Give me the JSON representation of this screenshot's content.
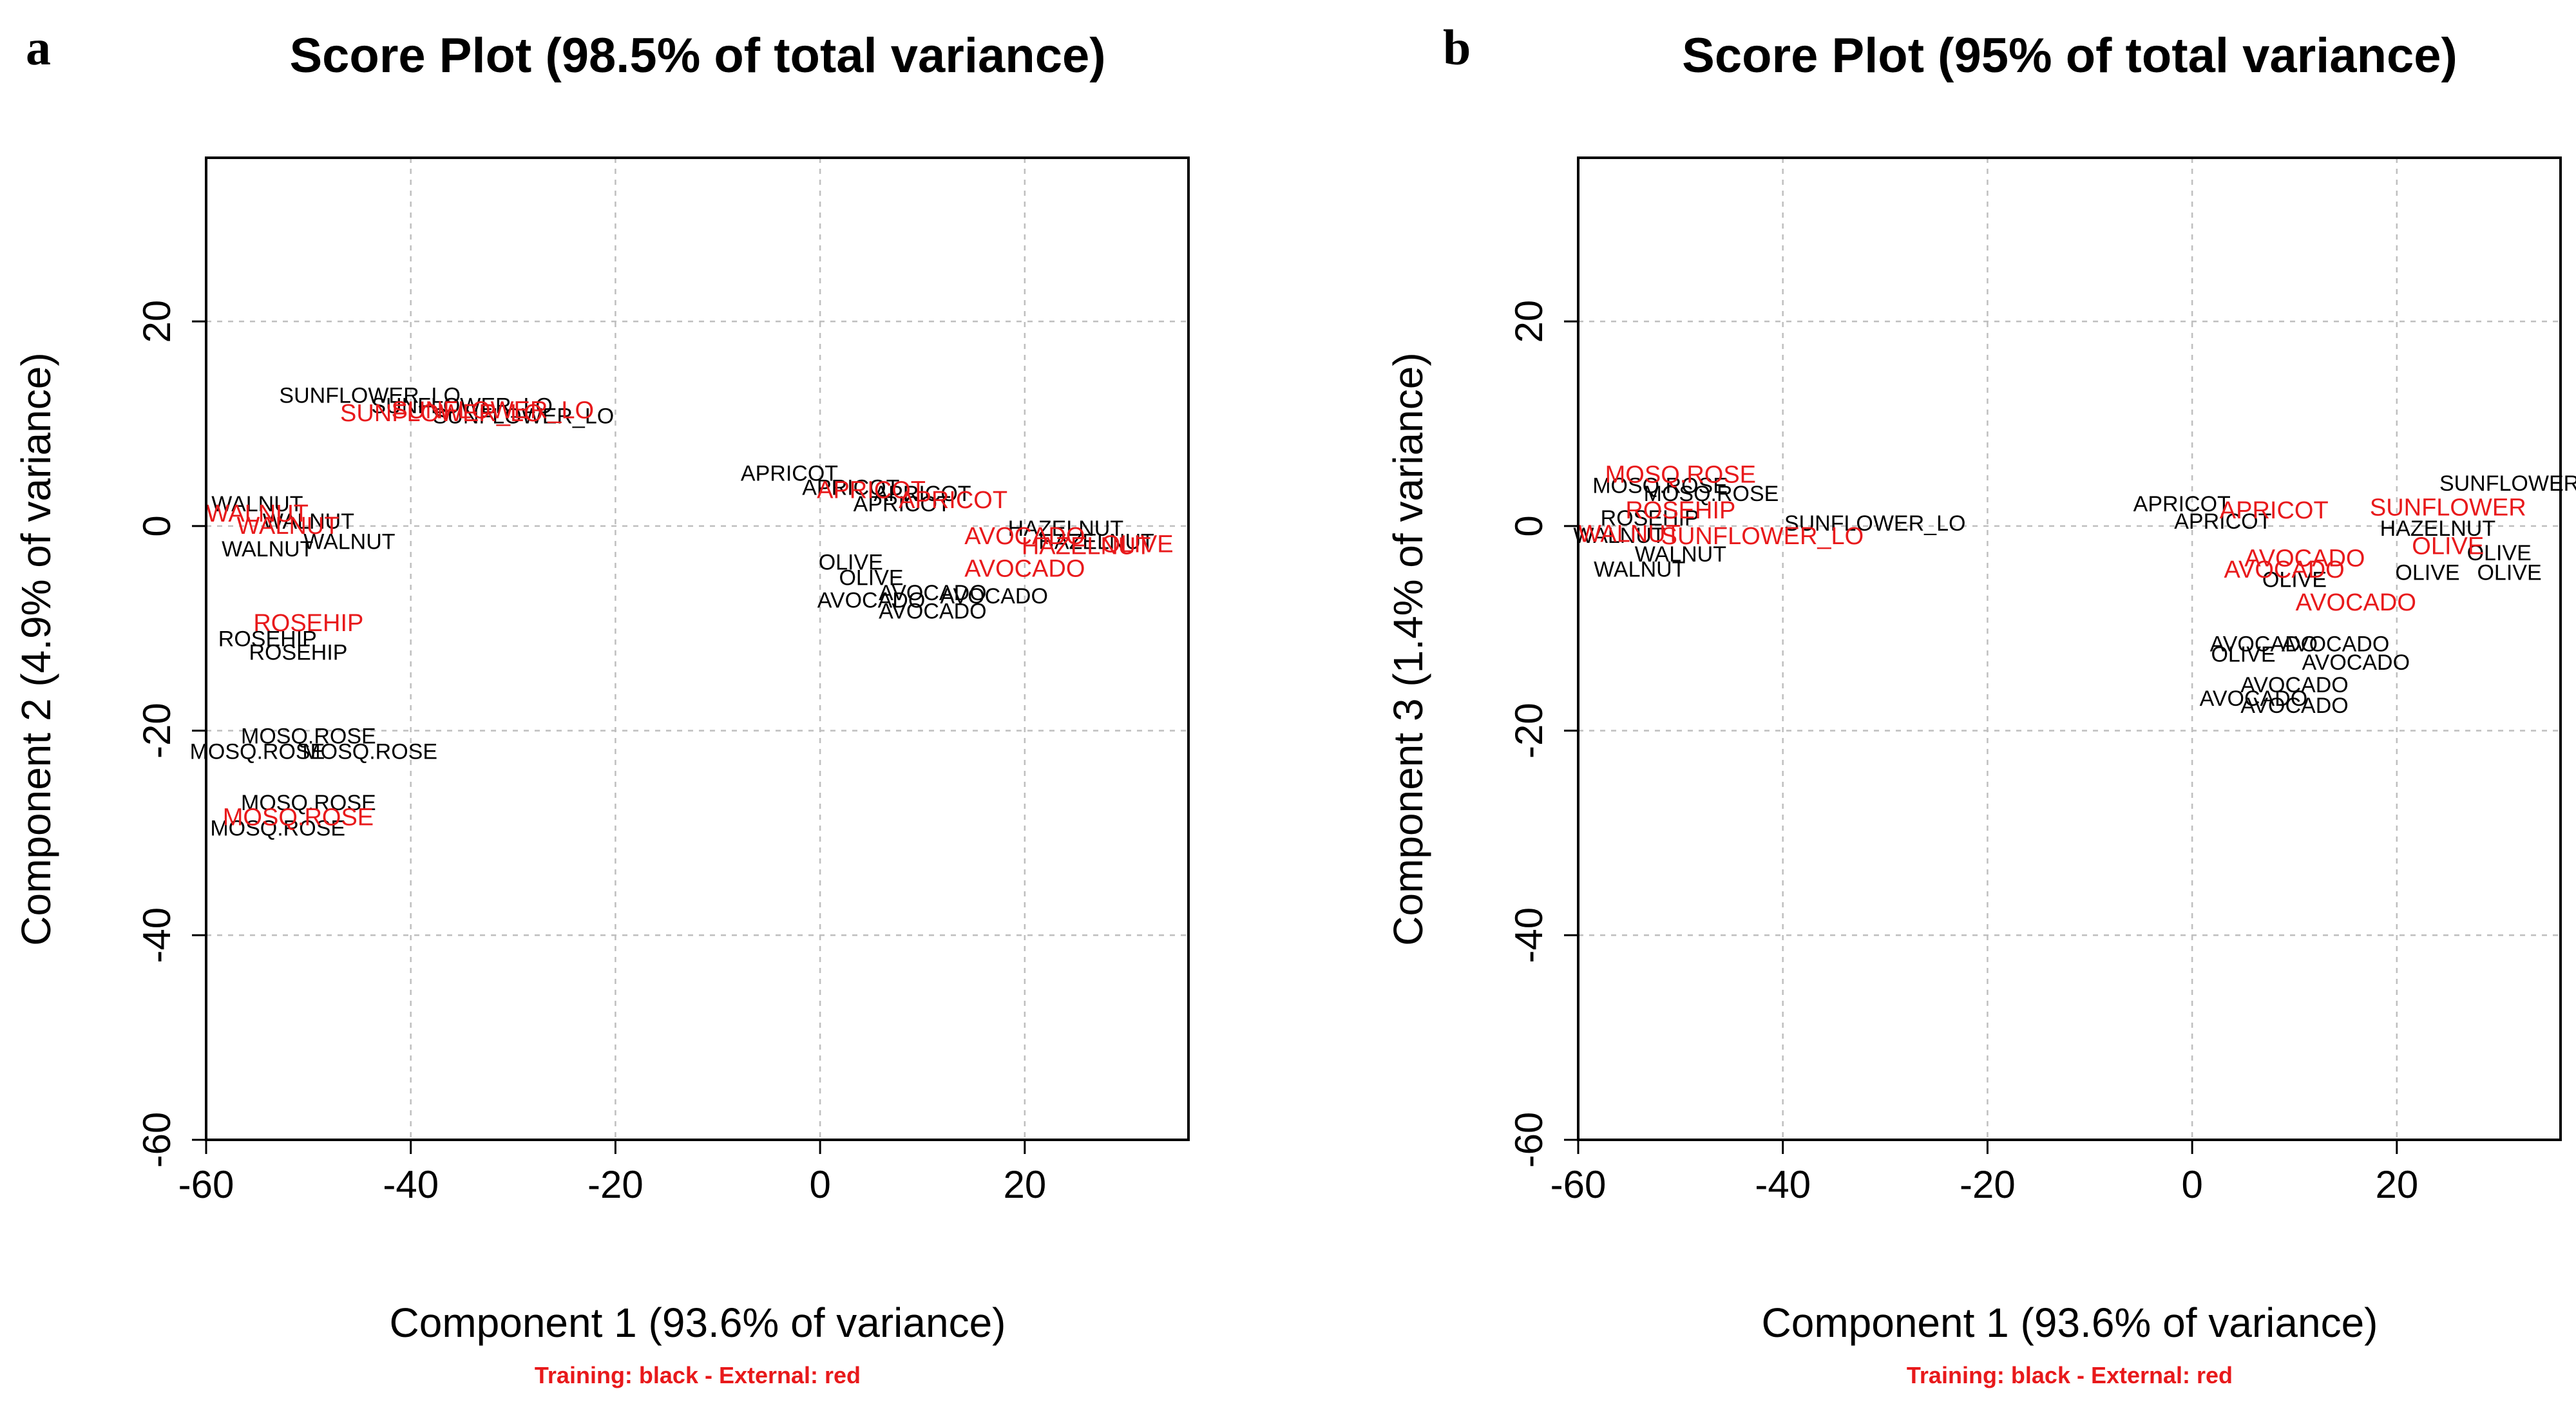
{
  "colors": {
    "training": "#000000",
    "external": "#e8191b",
    "grid": "#bfbfbf",
    "axis": "#000000"
  },
  "chart_data": [
    {
      "panel_label": "a",
      "type": "scatter",
      "title": "Score Plot (98.5% of total variance)",
      "xlabel": "Component 1 (93.6% of variance)",
      "ylabel": "Component 2 (4.9% of variance)",
      "note": "Training: black - External: red",
      "xlim": [
        -60,
        36
      ],
      "ylim": [
        -60,
        36
      ],
      "xticks": [
        -60,
        -40,
        -20,
        0,
        20
      ],
      "yticks": [
        -60,
        -40,
        -20,
        0,
        20
      ],
      "series": [
        {
          "name": "Training",
          "color": "black",
          "points": [
            {
              "x": -44,
              "y": 12.8,
              "label": "SUNFLOWER_LO"
            },
            {
              "x": -35,
              "y": 11.8,
              "label": "SUNFLOWER_LO"
            },
            {
              "x": -29,
              "y": 10.8,
              "label": "SUNFLOWER_LO"
            },
            {
              "x": -3,
              "y": 5.2,
              "label": "APRICOT"
            },
            {
              "x": 3,
              "y": 3.8,
              "label": "APRICOT"
            },
            {
              "x": 10,
              "y": 3.2,
              "label": "APRICOT"
            },
            {
              "x": 8,
              "y": 2.2,
              "label": "APRICOT"
            },
            {
              "x": 24,
              "y": -0.2,
              "label": "HAZELNUT"
            },
            {
              "x": 27,
              "y": -1.5,
              "label": "HAZELNUT"
            },
            {
              "x": 3,
              "y": -3.5,
              "label": "OLIVE"
            },
            {
              "x": 5,
              "y": -5,
              "label": "OLIVE"
            },
            {
              "x": 11,
              "y": -6.5,
              "label": "AVOCADO"
            },
            {
              "x": 17,
              "y": -6.8,
              "label": "AVOCADO"
            },
            {
              "x": 5,
              "y": -7.2,
              "label": "AVOCADO"
            },
            {
              "x": 11,
              "y": -8.3,
              "label": "AVOCADO"
            },
            {
              "x": -55,
              "y": 2.2,
              "label": "WALNUT"
            },
            {
              "x": -50,
              "y": 0.5,
              "label": "WALNUT"
            },
            {
              "x": -46,
              "y": -1.5,
              "label": "WALNUT"
            },
            {
              "x": -54,
              "y": -2.2,
              "label": "WALNUT"
            },
            {
              "x": -54,
              "y": -11,
              "label": "ROSEHIP"
            },
            {
              "x": -51,
              "y": -12.3,
              "label": "ROSEHIP"
            },
            {
              "x": -50,
              "y": -20.5,
              "label": "MOSQ.ROSE"
            },
            {
              "x": -55,
              "y": -22,
              "label": "MOSQ.ROSE"
            },
            {
              "x": -44,
              "y": -22,
              "label": "MOSQ.ROSE"
            },
            {
              "x": -50,
              "y": -27,
              "label": "MOSQ.ROSE"
            },
            {
              "x": -53,
              "y": -29.5,
              "label": "MOSQ.ROSE"
            }
          ]
        },
        {
          "name": "External",
          "color": "red",
          "points": [
            {
              "x": -37,
              "y": 11,
              "label": "SUNFLOWER_LO"
            },
            {
              "x": -32,
              "y": 11.3,
              "label": "SUNFLOWER_LO"
            },
            {
              "x": 5,
              "y": 3.5,
              "label": "APRICOT"
            },
            {
              "x": 13,
              "y": 2.5,
              "label": "APRICOT"
            },
            {
              "x": 20,
              "y": -1,
              "label": "AVOCADO"
            },
            {
              "x": 26,
              "y": -2,
              "label": "HAZELNUT"
            },
            {
              "x": 31,
              "y": -1.8,
              "label": "OLIVE"
            },
            {
              "x": 20,
              "y": -4.2,
              "label": "AVOCADO"
            },
            {
              "x": -55,
              "y": 1.2,
              "label": "WALNUT"
            },
            {
              "x": -52,
              "y": 0,
              "label": "WALNUT"
            },
            {
              "x": -50,
              "y": -9.5,
              "label": "ROSEHIP"
            },
            {
              "x": -51,
              "y": -28.5,
              "label": "MOSQ.ROSE"
            }
          ]
        }
      ]
    },
    {
      "panel_label": "b",
      "type": "scatter",
      "title": "Score Plot (95% of total variance)",
      "xlabel": "Component 1 (93.6% of variance)",
      "ylabel": "Component 3 (1.4% of variance)",
      "note": "Training: black - External: red",
      "xlim": [
        -60,
        36
      ],
      "ylim": [
        -60,
        36
      ],
      "xticks": [
        -60,
        -40,
        -20,
        0,
        20
      ],
      "yticks": [
        -60,
        -40,
        -20,
        0,
        20
      ],
      "series": [
        {
          "name": "Training",
          "color": "black",
          "points": [
            {
              "x": -52,
              "y": 4,
              "label": "MOSQ.ROSE"
            },
            {
              "x": -47,
              "y": 3.2,
              "label": "MOSQ.ROSE"
            },
            {
              "x": -53,
              "y": 0.8,
              "label": "ROSEHIP"
            },
            {
              "x": -31,
              "y": 0.3,
              "label": "SUNFLOWER_LO"
            },
            {
              "x": -56,
              "y": -0.9,
              "label": "WALNUT"
            },
            {
              "x": -50,
              "y": -2.7,
              "label": "WALNUT"
            },
            {
              "x": -54,
              "y": -4.2,
              "label": "WALNUT"
            },
            {
              "x": -1,
              "y": 2.2,
              "label": "APRICOT"
            },
            {
              "x": 3,
              "y": 0.5,
              "label": "APRICOT"
            },
            {
              "x": 31,
              "y": 4.2,
              "label": "SUNFLOWER"
            },
            {
              "x": 24,
              "y": -0.2,
              "label": "HAZELNUT"
            },
            {
              "x": 30,
              "y": -2.6,
              "label": "OLIVE"
            },
            {
              "x": 23,
              "y": -4.5,
              "label": "OLIVE"
            },
            {
              "x": 31,
              "y": -4.5,
              "label": "OLIVE"
            },
            {
              "x": 10,
              "y": -5.2,
              "label": "OLIVE"
            },
            {
              "x": 7,
              "y": -11.5,
              "label": "AVOCADO"
            },
            {
              "x": 14,
              "y": -11.5,
              "label": "AVOCADO"
            },
            {
              "x": 5,
              "y": -12.5,
              "label": "OLIVE"
            },
            {
              "x": 16,
              "y": -13.3,
              "label": "AVOCADO"
            },
            {
              "x": 10,
              "y": -15.5,
              "label": "AVOCADO"
            },
            {
              "x": 6,
              "y": -16.8,
              "label": "AVOCADO"
            },
            {
              "x": 10,
              "y": -17.5,
              "label": "AVOCADO"
            }
          ]
        },
        {
          "name": "External",
          "color": "red",
          "points": [
            {
              "x": -50,
              "y": 5,
              "label": "MOSQ.ROSE"
            },
            {
              "x": -50,
              "y": 1.5,
              "label": "ROSEHIP"
            },
            {
              "x": -55,
              "y": -0.8,
              "label": "WALNUT"
            },
            {
              "x": -42,
              "y": -1,
              "label": "SUNFLOWER_LO"
            },
            {
              "x": 8,
              "y": 1.5,
              "label": "APRICOT"
            },
            {
              "x": 25,
              "y": 1.8,
              "label": "SUNFLOWER"
            },
            {
              "x": 25,
              "y": -2,
              "label": "OLIVE"
            },
            {
              "x": 11,
              "y": -3.2,
              "label": "AVOCADO"
            },
            {
              "x": 9,
              "y": -4.3,
              "label": "AVOCADO"
            },
            {
              "x": 16,
              "y": -7.5,
              "label": "AVOCADO"
            }
          ]
        }
      ]
    }
  ]
}
